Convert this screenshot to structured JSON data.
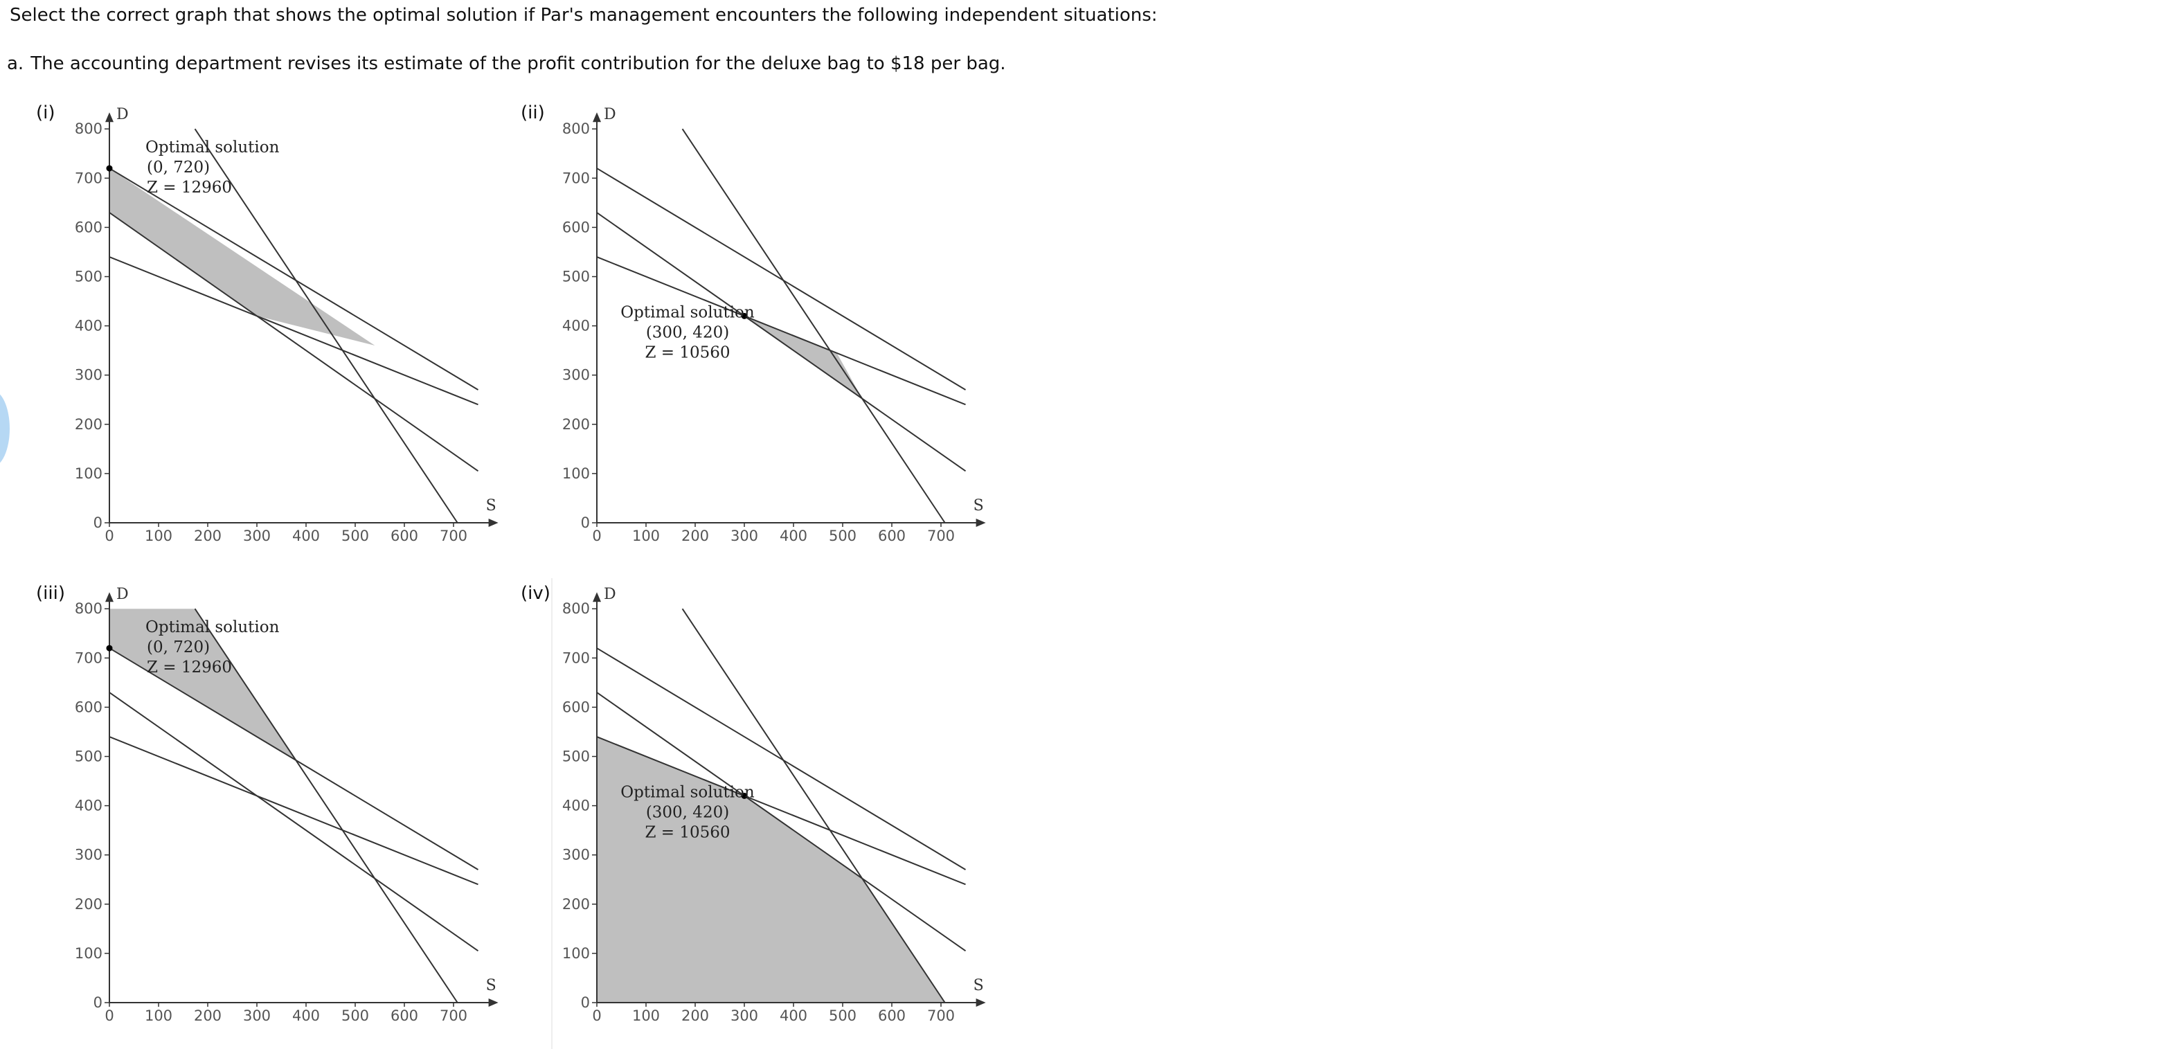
{
  "intro": "Select the correct graph that shows the optimal solution if Par's management encounters the following independent situations:",
  "question": {
    "letter": "a.",
    "text": "The accounting department revises its estimate of the profit contribution for the deluxe bag to $18 per bag."
  },
  "colors": {
    "line": "#333333",
    "shade": "#bfbfbf",
    "tick_text": "#555555",
    "blue_blob": "#a9d1f2"
  },
  "chart_data": [
    {
      "type": "line",
      "panel_label": "(i)",
      "xlabel": "S",
      "ylabel": "D",
      "xlim": [
        0,
        760
      ],
      "ylim": [
        0,
        800
      ],
      "x_ticks": [
        0,
        100,
        200,
        300,
        400,
        500,
        600,
        700
      ],
      "y_ticks": [
        0,
        100,
        200,
        300,
        400,
        500,
        600,
        700,
        800
      ],
      "series": [
        {
          "name": "constraint-1",
          "x": [
            0,
            750
          ],
          "y": [
            720,
            270
          ]
        },
        {
          "name": "constraint-2",
          "x": [
            0,
            750
          ],
          "y": [
            630,
            105
          ]
        },
        {
          "name": "constraint-3",
          "x": [
            0,
            750
          ],
          "y": [
            540,
            240
          ]
        },
        {
          "name": "constraint-4",
          "x": [
            174,
            708
          ],
          "y": [
            800,
            0
          ]
        }
      ],
      "shaded_region": {
        "x": [
          0,
          0,
          540,
          300
        ],
        "y": [
          630,
          720,
          360,
          420
        ]
      },
      "optimal_point": {
        "x": 0,
        "y": 720
      },
      "annotation": [
        "Optimal solution",
        "(0, 720)",
        "Z = 12960"
      ],
      "annotation_anchor": "top-left"
    },
    {
      "type": "line",
      "panel_label": "(ii)",
      "xlabel": "S",
      "ylabel": "D",
      "xlim": [
        0,
        760
      ],
      "ylim": [
        0,
        800
      ],
      "x_ticks": [
        0,
        100,
        200,
        300,
        400,
        500,
        600,
        700
      ],
      "y_ticks": [
        0,
        100,
        200,
        300,
        400,
        500,
        600,
        700,
        800
      ],
      "series": [
        {
          "name": "constraint-1",
          "x": [
            0,
            750
          ],
          "y": [
            720,
            270
          ]
        },
        {
          "name": "constraint-2",
          "x": [
            0,
            750
          ],
          "y": [
            630,
            105
          ]
        },
        {
          "name": "constraint-3",
          "x": [
            0,
            750
          ],
          "y": [
            540,
            240
          ]
        },
        {
          "name": "constraint-4",
          "x": [
            174,
            708
          ],
          "y": [
            800,
            0
          ]
        }
      ],
      "shaded_region": {
        "x": [
          300,
          488,
          540
        ],
        "y": [
          420,
          345,
          252
        ]
      },
      "optimal_point": {
        "x": 300,
        "y": 420
      },
      "annotation": [
        "Optimal solution",
        "(300, 420)",
        "Z = 10560"
      ],
      "annotation_anchor": "middle"
    },
    {
      "type": "line",
      "panel_label": "(iii)",
      "xlabel": "S",
      "ylabel": "D",
      "xlim": [
        0,
        760
      ],
      "ylim": [
        0,
        800
      ],
      "x_ticks": [
        0,
        100,
        200,
        300,
        400,
        500,
        600,
        700
      ],
      "y_ticks": [
        0,
        100,
        200,
        300,
        400,
        500,
        600,
        700,
        800
      ],
      "series": [
        {
          "name": "constraint-1",
          "x": [
            0,
            750
          ],
          "y": [
            720,
            270
          ]
        },
        {
          "name": "constraint-2",
          "x": [
            0,
            750
          ],
          "y": [
            630,
            105
          ]
        },
        {
          "name": "constraint-3",
          "x": [
            0,
            750
          ],
          "y": [
            540,
            240
          ]
        },
        {
          "name": "constraint-4",
          "x": [
            174,
            708
          ],
          "y": [
            800,
            0
          ]
        }
      ],
      "shaded_region": {
        "x": [
          0,
          0,
          174,
          382
        ],
        "y": [
          720,
          800,
          800,
          490
        ]
      },
      "optimal_point": {
        "x": 0,
        "y": 720
      },
      "annotation": [
        "Optimal solution",
        "(0, 720)",
        "Z = 12960"
      ],
      "annotation_anchor": "top-left"
    },
    {
      "type": "line",
      "panel_label": "(iv)",
      "xlabel": "S",
      "ylabel": "D",
      "xlim": [
        0,
        760
      ],
      "ylim": [
        0,
        800
      ],
      "x_ticks": [
        0,
        100,
        200,
        300,
        400,
        500,
        600,
        700
      ],
      "y_ticks": [
        0,
        100,
        200,
        300,
        400,
        500,
        600,
        700,
        800
      ],
      "series": [
        {
          "name": "constraint-1",
          "x": [
            0,
            750
          ],
          "y": [
            720,
            270
          ]
        },
        {
          "name": "constraint-2",
          "x": [
            0,
            750
          ],
          "y": [
            630,
            105
          ]
        },
        {
          "name": "constraint-3",
          "x": [
            0,
            750
          ],
          "y": [
            540,
            240
          ]
        },
        {
          "name": "constraint-4",
          "x": [
            174,
            708
          ],
          "y": [
            800,
            0
          ]
        }
      ],
      "shaded_region": {
        "x": [
          0,
          0,
          300,
          540,
          708
        ],
        "y": [
          0,
          540,
          420,
          252,
          0
        ]
      },
      "optimal_point": {
        "x": 300,
        "y": 420
      },
      "annotation": [
        "Optimal solution",
        "(300, 420)",
        "Z = 10560"
      ],
      "annotation_anchor": "middle"
    }
  ]
}
